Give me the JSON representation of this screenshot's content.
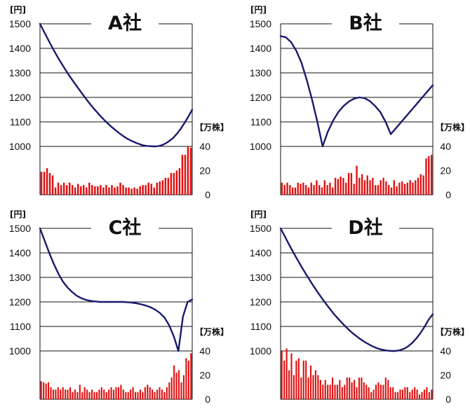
{
  "price_unit_label": "[円]",
  "volume_unit_label": "【万株】",
  "charts": [
    {
      "title": "A社",
      "price_ticks": [
        "1500",
        "1400",
        "1300",
        "1200",
        "1100",
        "1000"
      ],
      "volume_ticks": [
        "40",
        "20",
        "0"
      ]
    },
    {
      "title": "B社",
      "price_ticks": [
        "1500",
        "1400",
        "1300",
        "1200",
        "1100",
        "1000"
      ],
      "volume_ticks": [
        "40",
        "20",
        "0"
      ]
    },
    {
      "title": "C社",
      "price_ticks": [
        "1500",
        "1400",
        "1300",
        "1200",
        "1100",
        "1000"
      ],
      "volume_ticks": [
        "40",
        "20",
        "0"
      ]
    },
    {
      "title": "D社",
      "price_ticks": [
        "1500",
        "1400",
        "1300",
        "1200",
        "1100",
        "1000"
      ],
      "volume_ticks": [
        "40",
        "20",
        "0"
      ]
    }
  ],
  "chart_data": [
    {
      "type": "line+bar",
      "title": "A社",
      "y_price_range": [
        1000,
        1500
      ],
      "y_volume_range": [
        0,
        40
      ],
      "price": [
        1500,
        1470,
        1440,
        1410,
        1382,
        1355,
        1330,
        1305,
        1282,
        1260,
        1238,
        1217,
        1196,
        1176,
        1157,
        1139,
        1122,
        1106,
        1091,
        1077,
        1064,
        1052,
        1041,
        1031,
        1023,
        1016,
        1010,
        1005,
        1002,
        1001,
        1000,
        1001,
        1005,
        1012,
        1022,
        1035,
        1052,
        1072,
        1096,
        1122,
        1150
      ],
      "volume": [
        19,
        19,
        22,
        18,
        16,
        6,
        10,
        8,
        10,
        8,
        10,
        8,
        6,
        9,
        7,
        8,
        6,
        10,
        8,
        7,
        7,
        8,
        6,
        8,
        6,
        8,
        6,
        7,
        10,
        8,
        6,
        6,
        5,
        6,
        5,
        7,
        8,
        8,
        10,
        9,
        6,
        10,
        11,
        12,
        14,
        14,
        18,
        18,
        20,
        22,
        33,
        33,
        40,
        39
      ]
    },
    {
      "type": "line+bar",
      "title": "B社",
      "y_price_range": [
        1000,
        1500
      ],
      "y_volume_range": [
        0,
        40
      ],
      "price": [
        1450,
        1445,
        1425,
        1390,
        1340,
        1270,
        1190,
        1100,
        1000,
        1060,
        1105,
        1140,
        1165,
        1183,
        1195,
        1200,
        1197,
        1185,
        1165,
        1140,
        1100,
        1050,
        1075,
        1100,
        1125,
        1150,
        1175,
        1200,
        1225,
        1250
      ],
      "volume": [
        10,
        8,
        10,
        8,
        6,
        6,
        10,
        9,
        10,
        8,
        6,
        10,
        8,
        12,
        8,
        6,
        12,
        8,
        10,
        6,
        14,
        13,
        15,
        14,
        10,
        18,
        18,
        9,
        24,
        14,
        17,
        12,
        16,
        12,
        14,
        8,
        8,
        12,
        14,
        11,
        8,
        6,
        12,
        7,
        10,
        11,
        9,
        10,
        12,
        10,
        12,
        14,
        17,
        16,
        30,
        32,
        33
      ]
    },
    {
      "type": "line+bar",
      "title": "C社",
      "y_price_range": [
        1000,
        1500
      ],
      "y_volume_range": [
        0,
        40
      ],
      "price": [
        1500,
        1450,
        1400,
        1355,
        1315,
        1282,
        1258,
        1240,
        1225,
        1215,
        1208,
        1204,
        1202,
        1200,
        1200,
        1200,
        1200,
        1200,
        1200,
        1199,
        1197,
        1194,
        1190,
        1185,
        1178,
        1168,
        1155,
        1136,
        1105,
        1060,
        1000,
        1140,
        1200,
        1210
      ],
      "volume": [
        15,
        14,
        13,
        14,
        10,
        8,
        8,
        10,
        8,
        10,
        8,
        8,
        10,
        6,
        8,
        6,
        12,
        6,
        10,
        8,
        6,
        8,
        6,
        6,
        8,
        10,
        8,
        6,
        8,
        10,
        8,
        10,
        10,
        12,
        8,
        6,
        6,
        8,
        10,
        6,
        6,
        8,
        6,
        10,
        12,
        10,
        8,
        6,
        8,
        10,
        8,
        6,
        10,
        14,
        18,
        28,
        22,
        24,
        14,
        20,
        34,
        32,
        38
      ]
    },
    {
      "type": "line+bar",
      "title": "D社",
      "y_price_range": [
        1000,
        1500
      ],
      "y_volume_range": [
        0,
        40
      ],
      "price": [
        1500,
        1468,
        1436,
        1405,
        1375,
        1346,
        1318,
        1291,
        1265,
        1240,
        1216,
        1193,
        1171,
        1150,
        1131,
        1113,
        1096,
        1080,
        1066,
        1053,
        1041,
        1031,
        1022,
        1014,
        1008,
        1004,
        1001,
        1000,
        1000,
        1003,
        1009,
        1019,
        1033,
        1051,
        1073,
        1099,
        1128,
        1150
      ],
      "volume": [
        40,
        32,
        42,
        24,
        38,
        20,
        32,
        34,
        18,
        32,
        32,
        18,
        28,
        20,
        24,
        20,
        16,
        12,
        16,
        12,
        12,
        18,
        12,
        12,
        16,
        10,
        12,
        18,
        18,
        14,
        16,
        10,
        18,
        18,
        14,
        12,
        10,
        6,
        8,
        12,
        14,
        12,
        12,
        18,
        16,
        10,
        10,
        6,
        6,
        8,
        8,
        10,
        10,
        6,
        8,
        10,
        8,
        4,
        6,
        8,
        10,
        6,
        8
      ]
    }
  ]
}
